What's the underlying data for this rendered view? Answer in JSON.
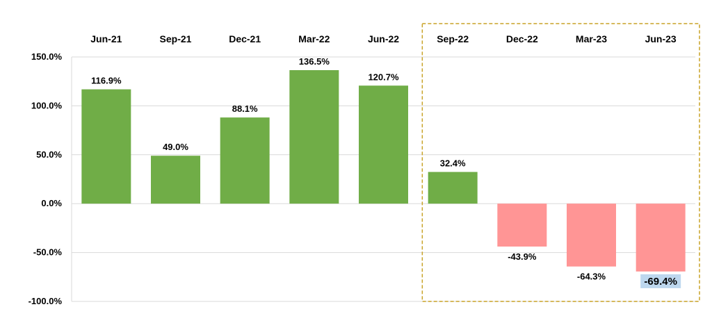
{
  "chart_data": {
    "type": "bar",
    "categories": [
      "Jun-21",
      "Sep-21",
      "Dec-21",
      "Mar-22",
      "Jun-22",
      "Sep-22",
      "Dec-22",
      "Mar-23",
      "Jun-23"
    ],
    "values": [
      116.9,
      49.0,
      88.1,
      136.5,
      120.7,
      32.4,
      -43.9,
      -64.3,
      -69.4
    ],
    "value_labels": [
      "116.9%",
      "49.0%",
      "88.1%",
      "136.5%",
      "120.7%",
      "32.4%",
      "-43.9%",
      "-64.3%",
      "-69.4%"
    ],
    "yticks": [
      150,
      100,
      50,
      0,
      -50,
      -100
    ],
    "ytick_labels": [
      "150.0%",
      "100.0%",
      "50.0%",
      "0.0%",
      "-50.0%",
      "-100.0%"
    ],
    "ylim": [
      -100,
      150
    ],
    "title": "",
    "xlabel": "",
    "ylabel": "",
    "grid": "horizontal",
    "category_axis_position": "top",
    "highlight_box": {
      "from_category": "Sep-22",
      "to_category": "Jun-23",
      "color": "#c9a227"
    },
    "highlight_label": {
      "category": "Jun-23",
      "background": "#bdd7ee"
    },
    "colors": {
      "positive": "#70ad47",
      "negative": "#ff9595",
      "gridline": "#d9d9d9"
    }
  }
}
